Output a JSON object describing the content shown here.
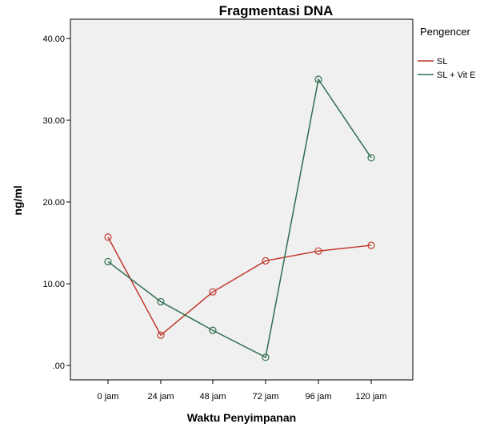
{
  "chart_data": {
    "type": "line",
    "title": "Fragmentasi DNA",
    "xlabel": "Waktu Penyimpanan",
    "ylabel": "ng/ml",
    "categories": [
      "0 jam",
      "24 jam",
      "48 jam",
      "72 jam",
      "96 jam",
      "120 jam"
    ],
    "ylim": [
      0,
      42
    ],
    "yticks": [
      0,
      10,
      20,
      30,
      40
    ],
    "ytick_labels": [
      ".00",
      "10.00",
      "20.00",
      "30.00",
      "40.00"
    ],
    "legend": {
      "title": "Pengencer",
      "position": "right"
    },
    "grid": false,
    "series": [
      {
        "name": "SL",
        "color": "#c0392b",
        "values": [
          15.7,
          3.7,
          9.0,
          12.8,
          14.0,
          14.7
        ]
      },
      {
        "name": "SL + Vit E",
        "color": "#2e6e4e",
        "values": [
          12.7,
          7.8,
          4.3,
          1.0,
          35.0,
          25.4
        ]
      }
    ]
  }
}
